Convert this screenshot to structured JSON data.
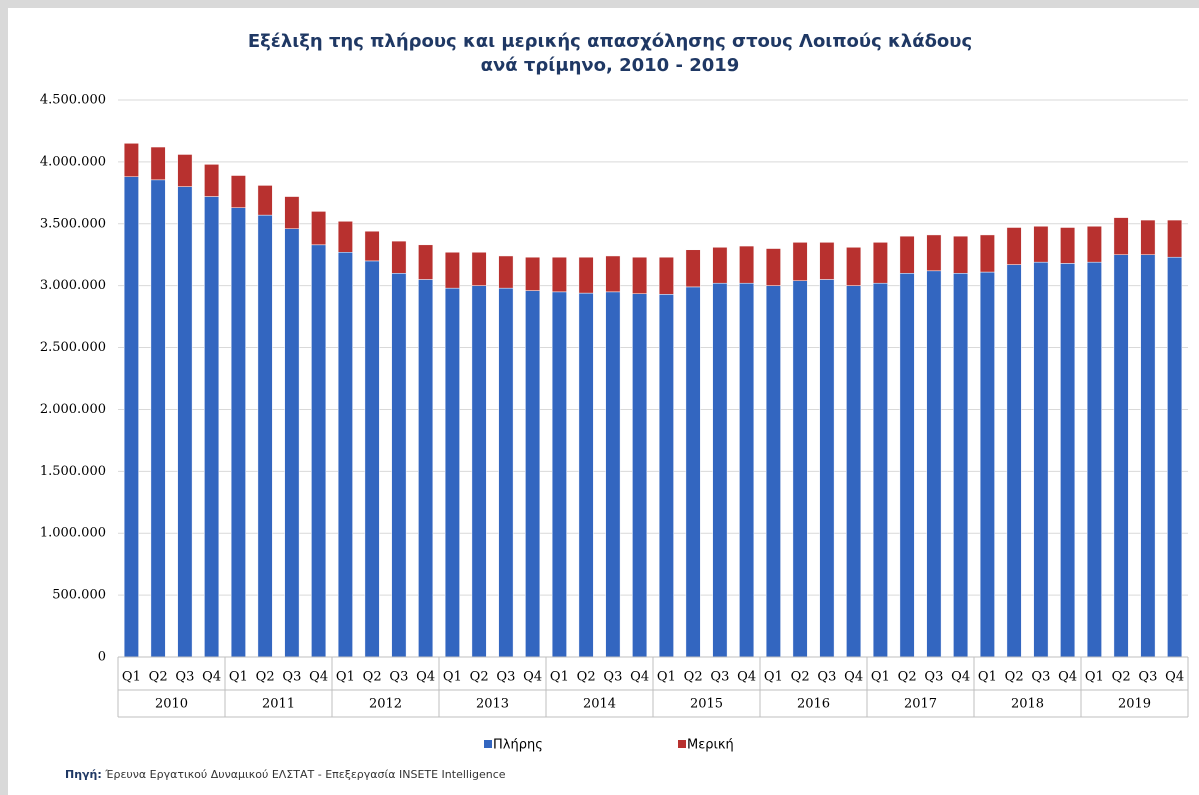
{
  "chart_data": {
    "type": "stacked-bar",
    "title": [
      "Εξέλιξη της πλήρους και μερικής απασχόλησης στους Λοιπούς κλάδους",
      "ανά τρίμηνο, 2010 - 2019"
    ],
    "categories": [
      "Q1",
      "Q2",
      "Q3",
      "Q4",
      "Q1",
      "Q2",
      "Q3",
      "Q4",
      "Q1",
      "Q2",
      "Q3",
      "Q4",
      "Q1",
      "Q2",
      "Q3",
      "Q4",
      "Q1",
      "Q2",
      "Q3",
      "Q4",
      "Q1",
      "Q2",
      "Q3",
      "Q4",
      "Q1",
      "Q2",
      "Q3",
      "Q4",
      "Q1",
      "Q2",
      "Q3",
      "Q4",
      "Q1",
      "Q2",
      "Q3",
      "Q4",
      "Q1",
      "Q2",
      "Q3",
      "Q4"
    ],
    "groups": [
      "2010",
      "2011",
      "2012",
      "2013",
      "2014",
      "2015",
      "2016",
      "2017",
      "2018",
      "2019"
    ],
    "series": [
      {
        "name": "Πλήρης",
        "color": "#3366c0",
        "values": [
          3880000,
          3855000,
          3800000,
          3720000,
          3630000,
          3570000,
          3460000,
          3330000,
          3270000,
          3200000,
          3100000,
          3050000,
          2980000,
          3000000,
          2980000,
          2960000,
          2950000,
          2940000,
          2950000,
          2935000,
          2930000,
          2990000,
          3020000,
          3020000,
          3000000,
          3040000,
          3050000,
          3000000,
          3020000,
          3100000,
          3120000,
          3100000,
          3110000,
          3170000,
          3190000,
          3180000,
          3190000,
          3250000,
          3250000,
          3230000
        ]
      },
      {
        "name": "Μερική",
        "color": "#b8312f",
        "values": [
          270000,
          265000,
          260000,
          260000,
          260000,
          240000,
          260000,
          270000,
          250000,
          240000,
          260000,
          280000,
          290000,
          270000,
          260000,
          270000,
          280000,
          290000,
          290000,
          295000,
          300000,
          300000,
          290000,
          300000,
          300000,
          310000,
          300000,
          310000,
          330000,
          300000,
          290000,
          300000,
          300000,
          300000,
          290000,
          290000,
          290000,
          300000,
          280000,
          300000
        ]
      }
    ],
    "ylim": [
      0,
      4500000
    ],
    "yticks": [
      {
        "value": 0,
        "label": "0"
      },
      {
        "value": 500000,
        "label": "500.000"
      },
      {
        "value": 1000000,
        "label": "1.000.000"
      },
      {
        "value": 1500000,
        "label": "1.500.000"
      },
      {
        "value": 2000000,
        "label": "2.000.000"
      },
      {
        "value": 2500000,
        "label": "2.500.000"
      },
      {
        "value": 3000000,
        "label": "3.000.000"
      },
      {
        "value": 3500000,
        "label": "3.500.000"
      },
      {
        "value": 4000000,
        "label": "4.000.000"
      },
      {
        "value": 4500000,
        "label": "4.500.000"
      }
    ],
    "grid": true,
    "legend": "bottom",
    "source_label": "Πηγή:",
    "source": "Έρευνα Εργατικού Δυναμικού ΕΛΣΤΑΤ - Επεξεργασία INSETE Intelligence"
  }
}
